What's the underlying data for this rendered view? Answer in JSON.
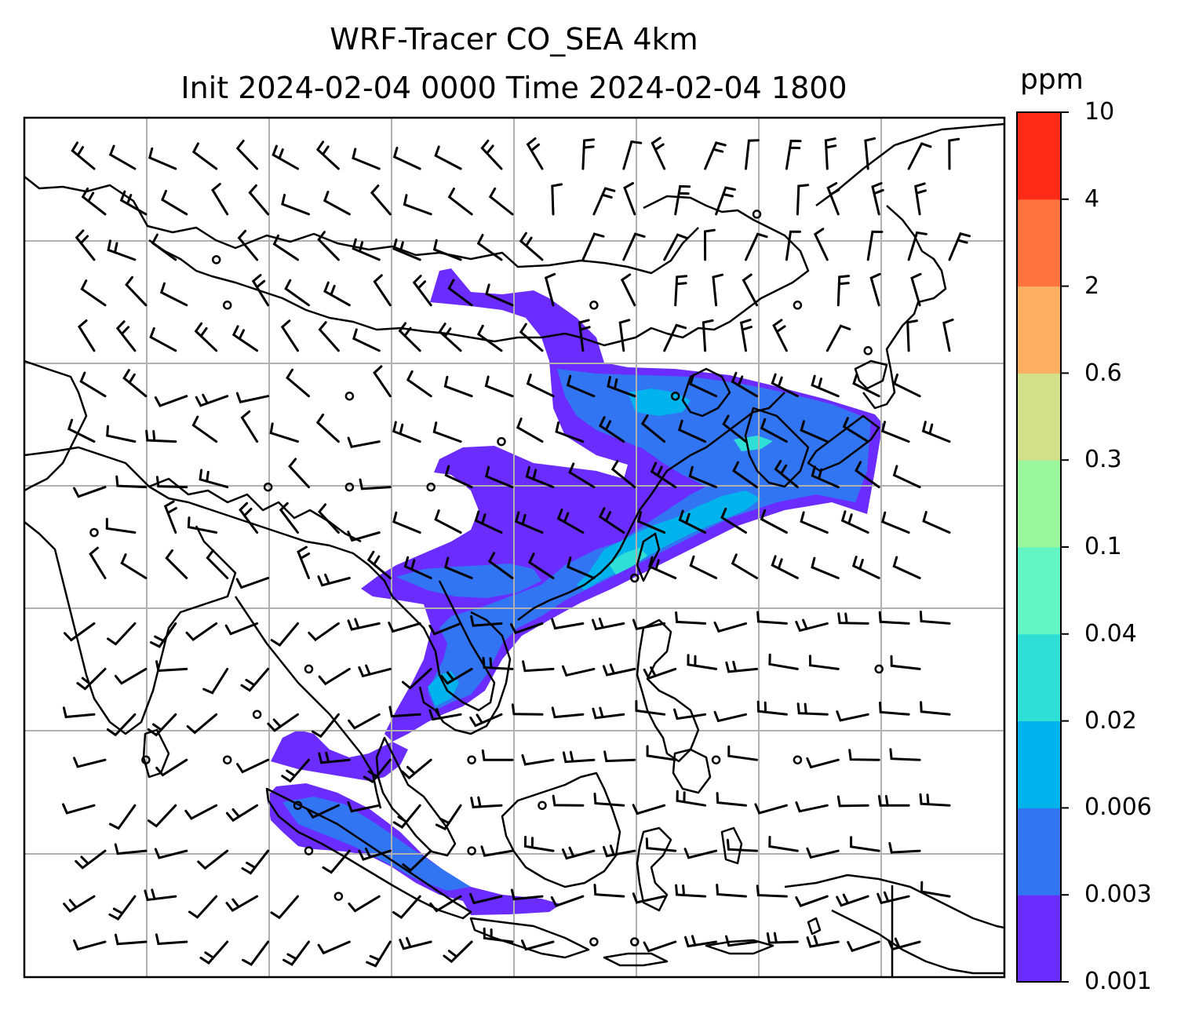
{
  "title": {
    "line1": "WRF-Tracer CO_SEA 4km",
    "line2": "Init 2024-02-04 0000 Time 2024-02-04 1800"
  },
  "colorbar": {
    "unit": "ppm",
    "levels": [
      "0.001",
      "0.003",
      "0.006",
      "0.02",
      "0.04",
      "0.1",
      "0.3",
      "0.6",
      "2",
      "4",
      "10"
    ],
    "colors": [
      "#6a2cff",
      "#3275f3",
      "#00b3ec",
      "#2fdfd6",
      "#62f5c3",
      "#99f69c",
      "#d1e089",
      "#fdb061",
      "#ff733e",
      "#ff2a17"
    ]
  },
  "map": {
    "background": "#ffffff",
    "gridline_color": "#b0b0b0",
    "coastline_color": "#000000",
    "wind_barbs_color": "#000000"
  }
}
